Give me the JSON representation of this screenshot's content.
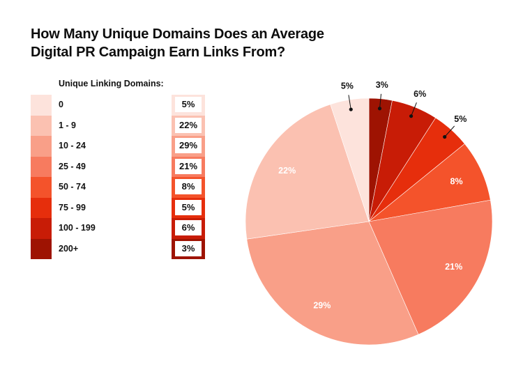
{
  "title_lines": [
    "How Many Unique Domains Does an Average",
    "Digital PR Campaign Earn Links From?"
  ],
  "legend_title": "Unique Linking Domains:",
  "chart_data": {
    "type": "pie",
    "title": "How Many Unique Domains Does an Average Digital PR Campaign Earn Links From?",
    "legend_title": "Unique Linking Domains:",
    "categories": [
      "0",
      "1 - 9",
      "10 - 24",
      "25 - 49",
      "50 - 74",
      "75 - 99",
      "100 - 199",
      "200+"
    ],
    "values": [
      5,
      22,
      29,
      21,
      8,
      5,
      6,
      3
    ],
    "labels": [
      "5%",
      "22%",
      "29%",
      "21%",
      "8%",
      "5%",
      "6%",
      "3%"
    ],
    "colors": [
      "#fde3dc",
      "#fbc1b1",
      "#f99f88",
      "#f77b5f",
      "#f4532b",
      "#e62e0c",
      "#c81c06",
      "#9e1302"
    ],
    "legend_position": "left",
    "start_angle_deg": 0,
    "slice_order_clockwise": [
      "200+",
      "100 - 199",
      "75 - 99",
      "50 - 74",
      "25 - 49",
      "10 - 24",
      "1 - 9",
      "0"
    ]
  }
}
